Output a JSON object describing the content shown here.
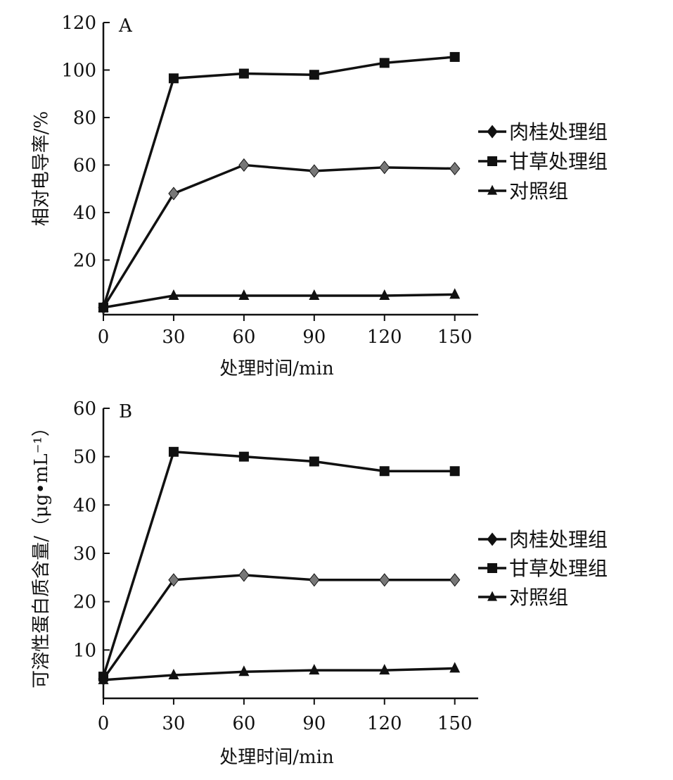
{
  "chart_data": [
    {
      "type": "line",
      "panel_label": "A",
      "title": "",
      "xlabel": "处理时间/min",
      "ylabel": "相对电导率/%",
      "x": [
        0,
        30,
        60,
        90,
        120,
        150
      ],
      "xlim": [
        0,
        160
      ],
      "ylim": [
        -3,
        120
      ],
      "yticks": [
        20,
        40,
        60,
        80,
        100,
        120
      ],
      "xticks": [
        0,
        30,
        60,
        90,
        120,
        150
      ],
      "grid": false,
      "legend_position": "right",
      "series": [
        {
          "name": "肉桂处理组",
          "marker": "diamond",
          "values": [
            0,
            48,
            60,
            57.5,
            59,
            58.5
          ]
        },
        {
          "name": "甘草处理组",
          "marker": "square",
          "values": [
            0,
            96.5,
            98.5,
            98,
            103,
            105.5
          ]
        },
        {
          "name": "对照组",
          "marker": "triangle",
          "values": [
            0,
            5,
            5,
            5,
            5,
            5.5
          ]
        }
      ]
    },
    {
      "type": "line",
      "panel_label": "B",
      "title": "",
      "xlabel": "处理时间/min",
      "ylabel": "可溶性蛋白质含量/（μg•mL⁻¹）",
      "x": [
        0,
        30,
        60,
        90,
        120,
        150
      ],
      "xlim": [
        0,
        160
      ],
      "ylim": [
        0,
        60
      ],
      "yticks": [
        10,
        20,
        30,
        40,
        50,
        60
      ],
      "xticks": [
        0,
        30,
        60,
        90,
        120,
        150
      ],
      "grid": false,
      "legend_position": "right",
      "series": [
        {
          "name": "肉桂处理组",
          "marker": "diamond",
          "values": [
            4,
            24.5,
            25.5,
            24.5,
            24.5,
            24.5
          ]
        },
        {
          "name": "甘草处理组",
          "marker": "square",
          "values": [
            4.5,
            51,
            50,
            49,
            47,
            47
          ]
        },
        {
          "name": "对照组",
          "marker": "triangle",
          "values": [
            3.8,
            4.8,
            5.5,
            5.8,
            5.8,
            6.2
          ]
        }
      ]
    }
  ],
  "colors": {
    "axis": "#111111",
    "series_line": "#111111",
    "cinnamon_marker": "#777777",
    "markers": "#111111"
  }
}
